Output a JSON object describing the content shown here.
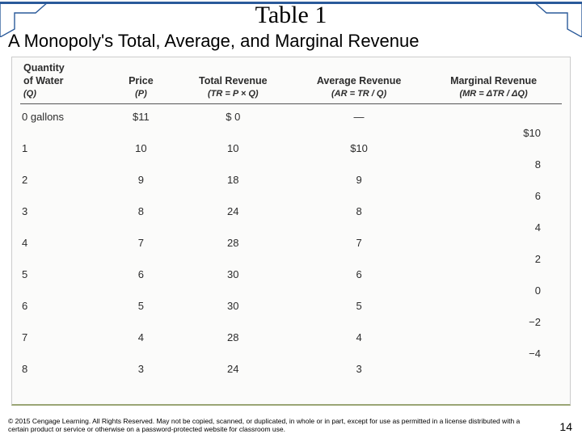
{
  "title": "Table 1",
  "subtitle": "A Monopoly's Total, Average, and Marginal Revenue",
  "columns": [
    {
      "label": "Quantity\nof Water",
      "symbol": "(Q)"
    },
    {
      "label": "Price",
      "symbol": "(P)"
    },
    {
      "label": "Total Revenue",
      "symbol": "(TR = P × Q)"
    },
    {
      "label": "Average Revenue",
      "symbol": "(AR = TR / Q)"
    },
    {
      "label": "Marginal Revenue",
      "symbol": "(MR = ΔTR / ΔQ)"
    }
  ],
  "rows": [
    {
      "q": "0 gallons",
      "p": "$11",
      "tr": "$ 0",
      "ar": "—"
    },
    {
      "q": "1",
      "p": "10",
      "tr": "10",
      "ar": "$10"
    },
    {
      "q": "2",
      "p": "9",
      "tr": "18",
      "ar": "9"
    },
    {
      "q": "3",
      "p": "8",
      "tr": "24",
      "ar": "8"
    },
    {
      "q": "4",
      "p": "7",
      "tr": "28",
      "ar": "7"
    },
    {
      "q": "5",
      "p": "6",
      "tr": "30",
      "ar": "6"
    },
    {
      "q": "6",
      "p": "5",
      "tr": "30",
      "ar": "5"
    },
    {
      "q": "7",
      "p": "4",
      "tr": "28",
      "ar": "4"
    },
    {
      "q": "8",
      "p": "3",
      "tr": "24",
      "ar": "3"
    }
  ],
  "mr_values": [
    "$10",
    "8",
    "6",
    "4",
    "2",
    "0",
    "−2",
    "−4"
  ],
  "layout": {
    "row_top_start": 8,
    "row_gap": 39,
    "mr_offset": 19.5,
    "colors": {
      "accent": "#2a5a9a",
      "table_bg": "#fbfbfa",
      "table_border": "#cccccc",
      "bottom_border": "#9aa575",
      "text": "#2c2c2c"
    }
  },
  "footer": {
    "copyright": "© 2015 Cengage Learning. All Rights Reserved. May not be copied, scanned, or duplicated, in whole or in part, except for use as permitted in a license distributed with a certain product or service or otherwise on a password-protected website for classroom use.",
    "page": "14"
  }
}
